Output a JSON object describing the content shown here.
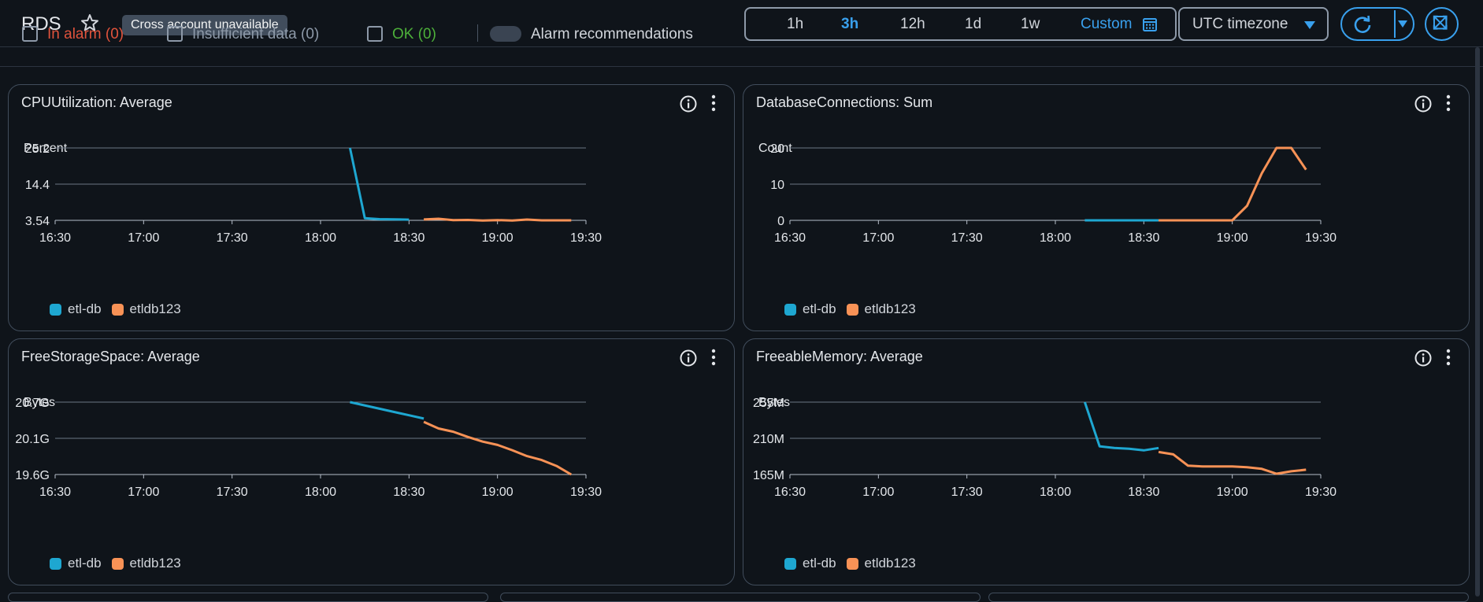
{
  "header": {
    "title": "RDS",
    "badge": "Cross account unavailable",
    "time_ranges": [
      {
        "label": "1h",
        "active": false
      },
      {
        "label": "3h",
        "active": true
      },
      {
        "label": "12h",
        "active": false
      },
      {
        "label": "1d",
        "active": false
      },
      {
        "label": "1w",
        "active": false
      },
      {
        "label": "Custom",
        "active": false
      }
    ],
    "timezone": "UTC timezone"
  },
  "filters": [
    {
      "label": "In alarm (0)",
      "color": "#e0533c"
    },
    {
      "label": "Insufficient data (0)",
      "color": "#8d99a8"
    },
    {
      "label": "OK (0)",
      "color": "#4db03a"
    },
    {
      "label": "Alarm recommendations",
      "color": "#d1d5db"
    }
  ],
  "colors": {
    "etl-db": "#1ea7d1",
    "etldb123": "#f89256"
  },
  "chart_data": [
    {
      "type": "line",
      "title": "CPUUtilization: Average",
      "ylabel": "Percent",
      "yticks": [
        "25.2",
        "14.4",
        "3.54"
      ],
      "ylim": [
        3.54,
        25.2
      ],
      "xticks": [
        "16:30",
        "17:00",
        "17:30",
        "18:00",
        "18:30",
        "19:00",
        "19:30"
      ],
      "xlim": [
        "16:30",
        "19:30"
      ],
      "series": [
        {
          "name": "etl-db",
          "points": [
            [
              "18:10",
              25.2
            ],
            [
              "18:15",
              4.2
            ],
            [
              "18:20",
              3.9
            ],
            [
              "18:30",
              3.75
            ]
          ]
        },
        {
          "name": "etldb123",
          "points": [
            [
              "18:35",
              3.8
            ],
            [
              "18:40",
              4.0
            ],
            [
              "18:45",
              3.6
            ],
            [
              "18:50",
              3.65
            ],
            [
              "18:55",
              3.5
            ],
            [
              "19:00",
              3.62
            ],
            [
              "19:05",
              3.5
            ],
            [
              "19:10",
              3.78
            ],
            [
              "19:15",
              3.55
            ],
            [
              "19:25",
              3.54
            ]
          ]
        }
      ]
    },
    {
      "type": "line",
      "title": "DatabaseConnections: Sum",
      "ylabel": "Count",
      "yticks": [
        "20",
        "10",
        "0"
      ],
      "ylim": [
        0,
        20
      ],
      "xticks": [
        "16:30",
        "17:00",
        "17:30",
        "18:00",
        "18:30",
        "19:00",
        "19:30"
      ],
      "xlim": [
        "16:30",
        "19:30"
      ],
      "series": [
        {
          "name": "etl-db",
          "points": [
            [
              "18:10",
              0
            ],
            [
              "18:35",
              0
            ]
          ]
        },
        {
          "name": "etldb123",
          "points": [
            [
              "18:35",
              0
            ],
            [
              "19:00",
              0
            ],
            [
              "19:05",
              4
            ],
            [
              "19:10",
              13
            ],
            [
              "19:15",
              20
            ],
            [
              "19:20",
              20
            ],
            [
              "19:25",
              14
            ]
          ]
        }
      ]
    },
    {
      "type": "line",
      "title": "FreeStorageSpace: Average",
      "ylabel": "Bytes",
      "yticks": [
        "20.7G",
        "20.1G",
        "19.6G"
      ],
      "ylim": [
        19.6,
        20.7
      ],
      "yunit": "G",
      "xticks": [
        "16:30",
        "17:00",
        "17:30",
        "18:00",
        "18:30",
        "19:00",
        "19:30"
      ],
      "xlim": [
        "16:30",
        "19:30"
      ],
      "series": [
        {
          "name": "etl-db",
          "points": [
            [
              "18:10",
              20.7
            ],
            [
              "18:20",
              20.6
            ],
            [
              "18:30",
              20.5
            ],
            [
              "18:35",
              20.45
            ]
          ]
        },
        {
          "name": "etldb123",
          "points": [
            [
              "18:35",
              20.4
            ],
            [
              "18:40",
              20.3
            ],
            [
              "18:45",
              20.25
            ],
            [
              "18:50",
              20.17
            ],
            [
              "18:55",
              20.1
            ],
            [
              "19:00",
              20.05
            ],
            [
              "19:05",
              19.97
            ],
            [
              "19:10",
              19.88
            ],
            [
              "19:15",
              19.82
            ],
            [
              "19:20",
              19.73
            ],
            [
              "19:25",
              19.6
            ]
          ]
        }
      ]
    },
    {
      "type": "line",
      "title": "FreeableMemory: Average",
      "ylabel": "Bytes",
      "yticks": [
        "255M",
        "210M",
        "165M"
      ],
      "ylim": [
        165,
        255
      ],
      "yunit": "M",
      "xticks": [
        "16:30",
        "17:00",
        "17:30",
        "18:00",
        "18:30",
        "19:00",
        "19:30"
      ],
      "xlim": [
        "16:30",
        "19:30"
      ],
      "series": [
        {
          "name": "etl-db",
          "points": [
            [
              "18:10",
              255
            ],
            [
              "18:15",
              200
            ],
            [
              "18:20",
              198
            ],
            [
              "18:25",
              197
            ],
            [
              "18:30",
              195
            ],
            [
              "18:35",
              198
            ]
          ]
        },
        {
          "name": "etldb123",
          "points": [
            [
              "18:35",
              193
            ],
            [
              "18:40",
              190
            ],
            [
              "18:45",
              176
            ],
            [
              "18:50",
              175
            ],
            [
              "18:55",
              175
            ],
            [
              "19:00",
              175
            ],
            [
              "19:05",
              174
            ],
            [
              "19:10",
              172
            ],
            [
              "19:15",
              166
            ],
            [
              "19:20",
              169
            ],
            [
              "19:25",
              171
            ]
          ]
        }
      ]
    }
  ]
}
